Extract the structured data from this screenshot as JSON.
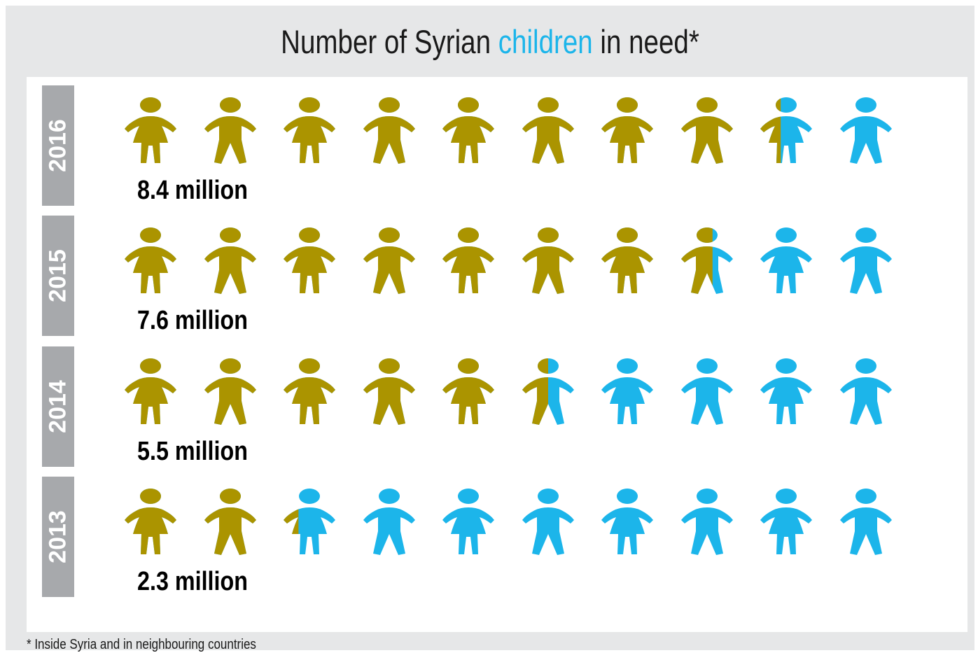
{
  "title": {
    "before": "Number of Syrian ",
    "highlight": "children",
    "after": " in need*"
  },
  "footnote": "* Inside Syria and in neighbouring countries",
  "colors": {
    "in_need": "#ab9400",
    "not_in_need": "#1cb5ea",
    "year_bar": "#a7a9ac",
    "background": "#e6e7e8"
  },
  "chart_data": {
    "type": "pictogram",
    "title": "Number of Syrian children in need*",
    "icons_per_row": 10,
    "rows": [
      {
        "year": "2016",
        "label": "8.4 million",
        "filled_icons": 8.4
      },
      {
        "year": "2015",
        "label": "7.6 million",
        "filled_icons": 7.6
      },
      {
        "year": "2014",
        "label": "5.5 million",
        "filled_icons": 5.5
      },
      {
        "year": "2013",
        "label": "2.3 million",
        "filled_icons": 2.3
      }
    ],
    "icon_pattern": [
      "girl",
      "boy",
      "girl",
      "boy",
      "girl",
      "boy",
      "girl",
      "boy",
      "girl",
      "boy"
    ]
  }
}
